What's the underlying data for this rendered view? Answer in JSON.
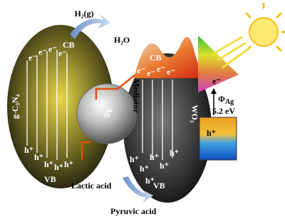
{
  "left": {
    "cb": "CB",
    "vb": "VB",
    "material": "g-C₃N₄",
    "electrons": [
      "e⁻",
      "e⁻",
      "e⁻",
      "e⁻"
    ],
    "holes": [
      "h⁺",
      "h⁺",
      "h⁺",
      "h⁺",
      "h⁺"
    ]
  },
  "right": {
    "cb": "CB",
    "vb": "VB",
    "material": "WO₃",
    "electrons": [
      "e⁻",
      "e⁻",
      "e⁻",
      "e⁻"
    ],
    "holes": [
      "h⁺",
      "h⁺",
      "h⁺",
      "h⁺",
      "h⁺",
      "h⁺"
    ]
  },
  "mediator": {
    "label": "Mediator",
    "core": "Ag"
  },
  "silver": {
    "electron": "e⁻",
    "work_function": {
      "symbol": "Φ",
      "sub": "Ag"
    },
    "energy": "5.2 eV",
    "hole": "h⁺"
  },
  "reactions": {
    "h2": "H₂(g)",
    "h2o": "H₂O",
    "lactic": "Lactic acid",
    "pyruvic": "Pyruvic acid"
  }
}
